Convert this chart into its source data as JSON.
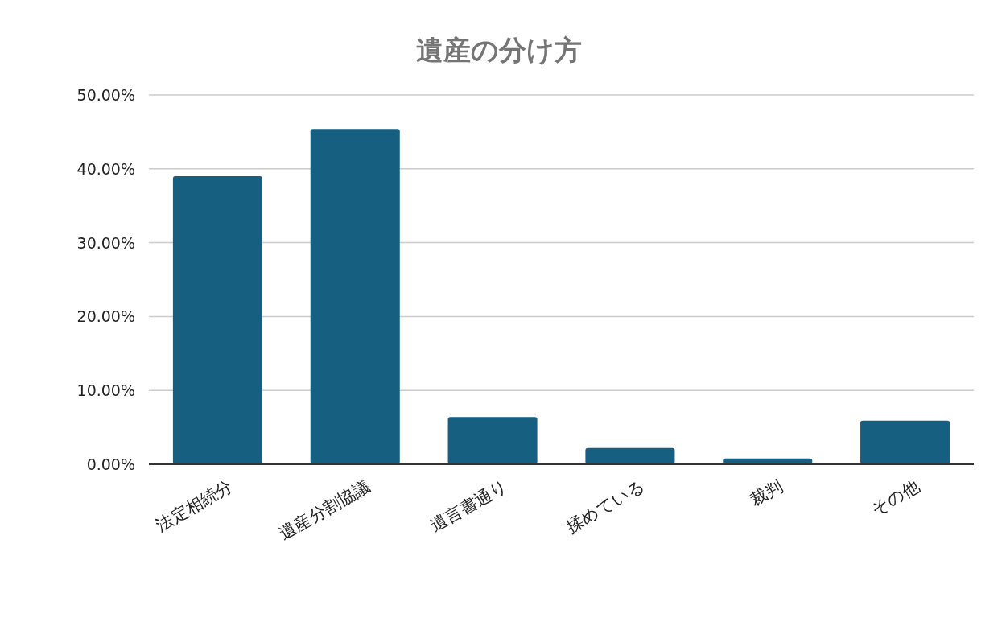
{
  "chart_data": {
    "type": "bar",
    "title": "遺産の分け方",
    "categories": [
      "法定相続分",
      "遺産分割協議",
      "遺言書通り",
      "揉めている",
      "裁判",
      "その他"
    ],
    "values": [
      39.0,
      45.4,
      6.4,
      2.2,
      0.8,
      5.9
    ],
    "color": "#175f80",
    "ylim": [
      0,
      50
    ],
    "yticks": [
      {
        "value": 0,
        "label": "0.00%"
      },
      {
        "value": 10,
        "label": "10.00%"
      },
      {
        "value": 20,
        "label": "20.00%"
      },
      {
        "value": 30,
        "label": "30.00%"
      },
      {
        "value": 40,
        "label": "40.00%"
      },
      {
        "value": 50,
        "label": "50.00%"
      }
    ],
    "grid": "y"
  }
}
